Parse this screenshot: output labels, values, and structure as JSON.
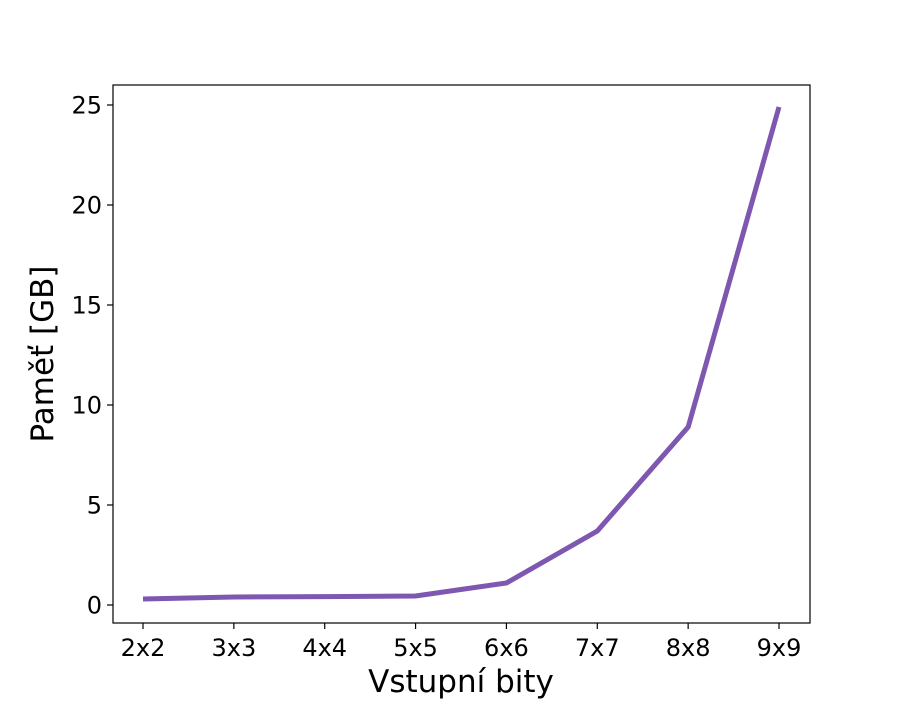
{
  "chart_data": {
    "type": "line",
    "title": "",
    "xlabel": "Vstupní bity",
    "ylabel": "Paměť [GB]",
    "categories": [
      "2x2",
      "3x3",
      "4x4",
      "5x5",
      "6x6",
      "7x7",
      "8x8",
      "9x9"
    ],
    "series": [
      {
        "name": "",
        "color": "#7e57b0",
        "values": [
          0.3,
          0.4,
          0.42,
          0.45,
          1.1,
          3.7,
          8.9,
          24.9
        ]
      }
    ],
    "ylim": [
      -0.9,
      26.0
    ],
    "yticks": [
      0,
      5,
      10,
      15,
      20,
      25
    ],
    "grid": false,
    "legend": "none"
  }
}
